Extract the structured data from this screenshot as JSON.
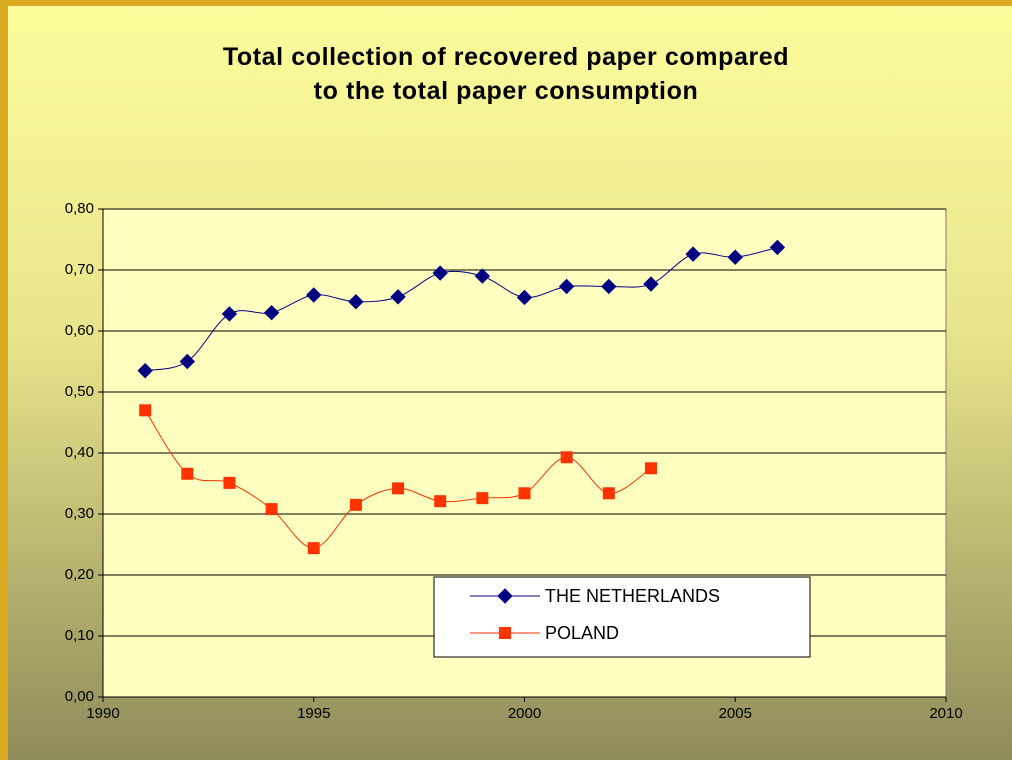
{
  "chart_data": {
    "type": "line",
    "title": "Total collection of recovered paper compared to the total paper consumption",
    "x": [
      1991,
      1992,
      1993,
      1994,
      1995,
      1996,
      1997,
      1998,
      1999,
      2000,
      2001,
      2002,
      2003,
      2004,
      2005,
      2006
    ],
    "series": [
      {
        "name": "THE NETHERLANDS",
        "color": "#000080",
        "marker": "diamond",
        "values": [
          0.535,
          0.55,
          0.628,
          0.63,
          0.659,
          0.648,
          0.656,
          0.695,
          0.69,
          0.655,
          0.673,
          0.673,
          0.677,
          0.726,
          0.721,
          0.737
        ]
      },
      {
        "name": "POLAND",
        "color": "#ff3300",
        "marker": "square",
        "values": [
          0.47,
          0.366,
          0.351,
          0.308,
          0.244,
          0.315,
          0.342,
          0.321,
          0.326,
          0.334,
          0.393,
          0.334,
          0.375,
          null,
          null,
          null
        ]
      }
    ],
    "xlim": [
      1990,
      2010
    ],
    "xticks": [
      1990,
      1995,
      2000,
      2005,
      2010
    ],
    "ylim": [
      0,
      0.8
    ],
    "yticks": [
      {
        "value": 0,
        "label": "0,00"
      },
      {
        "value": 0.1,
        "label": "0,10"
      },
      {
        "value": 0.2,
        "label": "0,20"
      },
      {
        "value": 0.3,
        "label": "0,30"
      },
      {
        "value": 0.4,
        "label": "0,40"
      },
      {
        "value": 0.5,
        "label": "0,50"
      },
      {
        "value": 0.6,
        "label": "0,60"
      },
      {
        "value": 0.7,
        "label": "0,70"
      },
      {
        "value": 0.8,
        "label": "0,80"
      }
    ],
    "grid": true,
    "legend": "lower right",
    "smooth": true
  }
}
